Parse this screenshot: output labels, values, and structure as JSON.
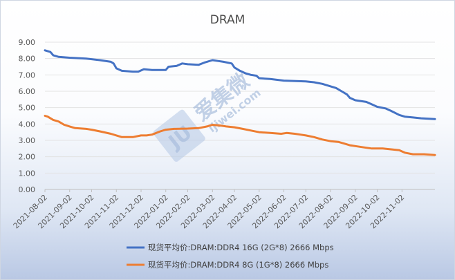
{
  "chart_data": {
    "type": "line",
    "title": "DRAM",
    "xlabel": "",
    "ylabel": "",
    "ylim": [
      0,
      9
    ],
    "yticks": [
      "0.00",
      "1.00",
      "2.00",
      "3.00",
      "4.00",
      "5.00",
      "6.00",
      "7.00",
      "8.00",
      "9.00"
    ],
    "x_domain": [
      0,
      142
    ],
    "xticks": [
      {
        "x": 0,
        "label": "2021-08-02"
      },
      {
        "x": 9,
        "label": "2021-09-02"
      },
      {
        "x": 17,
        "label": "2021-10-02"
      },
      {
        "x": 26,
        "label": "2021-11-02"
      },
      {
        "x": 35,
        "label": "2021-12-02"
      },
      {
        "x": 44,
        "label": "2022-01-02"
      },
      {
        "x": 52,
        "label": "2022-02-02"
      },
      {
        "x": 61,
        "label": "2022-03-02"
      },
      {
        "x": 69,
        "label": "2022-04-02"
      },
      {
        "x": 78,
        "label": "2022-05-02"
      },
      {
        "x": 87,
        "label": "2022-06-02"
      },
      {
        "x": 95,
        "label": "2022-07-02"
      },
      {
        "x": 104,
        "label": "2022-08-02"
      },
      {
        "x": 113,
        "label": "2022-09-02"
      },
      {
        "x": 121,
        "label": "2022-10-02"
      },
      {
        "x": 130,
        "label": "2022-11-02"
      }
    ],
    "series": [
      {
        "name": "现货平均价:DRAM:DDR4 16G (2G*8) 2666 Mbps",
        "color": "#4472c4",
        "points": [
          [
            0,
            8.5
          ],
          [
            2,
            8.4
          ],
          [
            3,
            8.2
          ],
          [
            5,
            8.1
          ],
          [
            9,
            8.05
          ],
          [
            15,
            8.0
          ],
          [
            20,
            7.9
          ],
          [
            24,
            7.8
          ],
          [
            25,
            7.7
          ],
          [
            26,
            7.4
          ],
          [
            28,
            7.25
          ],
          [
            32,
            7.2
          ],
          [
            34,
            7.2
          ],
          [
            36,
            7.35
          ],
          [
            39,
            7.3
          ],
          [
            44,
            7.3
          ],
          [
            45,
            7.5
          ],
          [
            48,
            7.55
          ],
          [
            50,
            7.7
          ],
          [
            52,
            7.65
          ],
          [
            56,
            7.62
          ],
          [
            58,
            7.75
          ],
          [
            61,
            7.9
          ],
          [
            63,
            7.85
          ],
          [
            65,
            7.8
          ],
          [
            68,
            7.7
          ],
          [
            69,
            7.45
          ],
          [
            71,
            7.25
          ],
          [
            73,
            7.1
          ],
          [
            75,
            7.0
          ],
          [
            77,
            6.95
          ],
          [
            78,
            6.8
          ],
          [
            82,
            6.75
          ],
          [
            87,
            6.65
          ],
          [
            95,
            6.6
          ],
          [
            98,
            6.55
          ],
          [
            101,
            6.45
          ],
          [
            104,
            6.3
          ],
          [
            106,
            6.2
          ],
          [
            108,
            6.0
          ],
          [
            110,
            5.8
          ],
          [
            111,
            5.6
          ],
          [
            113,
            5.45
          ],
          [
            117,
            5.35
          ],
          [
            119,
            5.2
          ],
          [
            121,
            5.05
          ],
          [
            124,
            4.95
          ],
          [
            126,
            4.8
          ],
          [
            129,
            4.55
          ],
          [
            131,
            4.45
          ],
          [
            134,
            4.4
          ],
          [
            137,
            4.35
          ],
          [
            142,
            4.3
          ]
        ]
      },
      {
        "name": "现货平均价:DRAM:DDR4 8G (1G*8) 2666 Mbps",
        "color": "#ed7d31",
        "points": [
          [
            0,
            4.5
          ],
          [
            1,
            4.45
          ],
          [
            3,
            4.25
          ],
          [
            5,
            4.15
          ],
          [
            7,
            3.95
          ],
          [
            9,
            3.85
          ],
          [
            11,
            3.75
          ],
          [
            15,
            3.7
          ],
          [
            17,
            3.65
          ],
          [
            20,
            3.55
          ],
          [
            24,
            3.4
          ],
          [
            26,
            3.3
          ],
          [
            28,
            3.2
          ],
          [
            32,
            3.2
          ],
          [
            35,
            3.3
          ],
          [
            37,
            3.3
          ],
          [
            39,
            3.35
          ],
          [
            42,
            3.55
          ],
          [
            44,
            3.65
          ],
          [
            47,
            3.7
          ],
          [
            52,
            3.72
          ],
          [
            56,
            3.75
          ],
          [
            59,
            3.85
          ],
          [
            61,
            3.95
          ],
          [
            64,
            3.9
          ],
          [
            66,
            3.85
          ],
          [
            69,
            3.8
          ],
          [
            72,
            3.7
          ],
          [
            75,
            3.6
          ],
          [
            78,
            3.5
          ],
          [
            82,
            3.45
          ],
          [
            86,
            3.4
          ],
          [
            88,
            3.45
          ],
          [
            91,
            3.4
          ],
          [
            93,
            3.35
          ],
          [
            95,
            3.3
          ],
          [
            98,
            3.2
          ],
          [
            101,
            3.05
          ],
          [
            104,
            2.95
          ],
          [
            107,
            2.9
          ],
          [
            109,
            2.8
          ],
          [
            111,
            2.7
          ],
          [
            113,
            2.65
          ],
          [
            117,
            2.55
          ],
          [
            119,
            2.5
          ],
          [
            123,
            2.5
          ],
          [
            126,
            2.45
          ],
          [
            129,
            2.4
          ],
          [
            131,
            2.25
          ],
          [
            134,
            2.15
          ],
          [
            138,
            2.15
          ],
          [
            142,
            2.1
          ]
        ]
      }
    ],
    "legend_position": "bottom"
  },
  "watermark": {
    "logo_letters": "JU",
    "brand_text": "爱集微",
    "url_text": "ijiwei.com"
  }
}
